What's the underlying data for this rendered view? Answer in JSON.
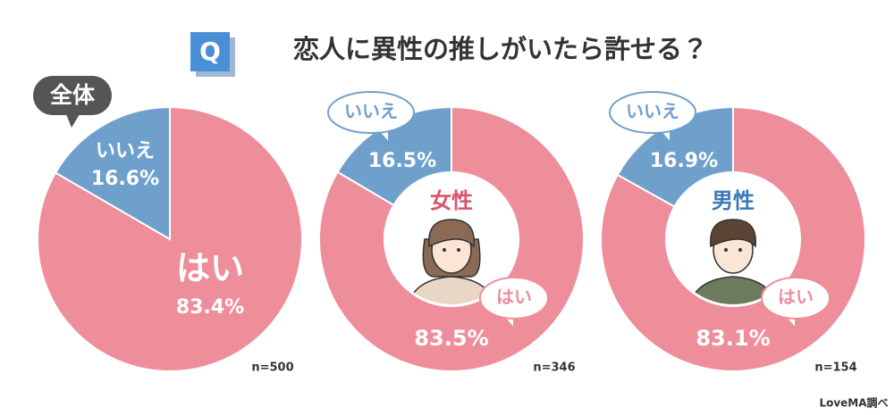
{
  "badge": "Q",
  "title": "恋人に異性の推しがいたら許せる？",
  "source": "LoveMA調べ",
  "chart_data": [
    {
      "type": "pie",
      "label": "全体",
      "categories": [
        "はい",
        "いいえ"
      ],
      "values": [
        83.4,
        16.6
      ],
      "value_labels": [
        "83.4%",
        "16.6%"
      ],
      "colors": [
        "#ee8e9b",
        "#6fa0cc"
      ],
      "n": "n=500"
    },
    {
      "type": "donut",
      "label": "女性",
      "label_color": "#d9546a",
      "categories": [
        "はい",
        "いいえ"
      ],
      "values": [
        83.5,
        16.5
      ],
      "value_labels": [
        "83.5%",
        "16.5%"
      ],
      "colors": [
        "#ee8e9b",
        "#6fa0cc"
      ],
      "n": "n=346"
    },
    {
      "type": "donut",
      "label": "男性",
      "label_color": "#3b78b8",
      "categories": [
        "はい",
        "いいえ"
      ],
      "values": [
        83.1,
        16.9
      ],
      "value_labels": [
        "83.1%",
        "16.9%"
      ],
      "colors": [
        "#ee8e9b",
        "#6fa0cc"
      ],
      "n": "n=154"
    }
  ]
}
